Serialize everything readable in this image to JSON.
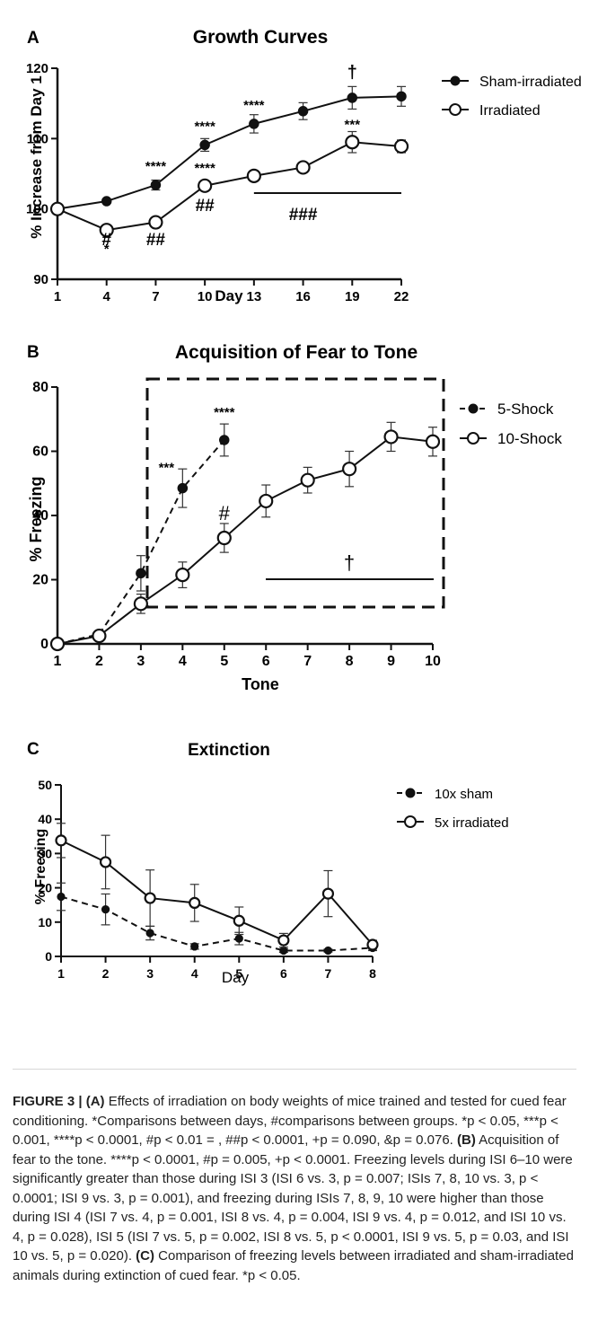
{
  "figure": {
    "panel_a": {
      "letter": "A",
      "title": "Growth  Curves",
      "ylabel": "% Increase from Day 1",
      "xlabel": "Day",
      "x_ticks": [
        "1",
        "4",
        "7",
        "10",
        "13",
        "16",
        "19",
        "22"
      ],
      "y_ticks": [
        "90",
        "100",
        "110",
        "120"
      ],
      "legend": [
        "Sham-irradiated",
        "Irradiated"
      ],
      "annotations": {
        "sham_stars": [
          {
            "x": 7,
            "y": 103.4,
            "text": "****"
          },
          {
            "x": 10,
            "y": 109.1,
            "text": "****"
          },
          {
            "x": 13,
            "y": 112.1,
            "text": "****"
          },
          {
            "x": 19,
            "y": 115.8,
            "text": "†"
          }
        ],
        "irr_stars": [
          {
            "x": 4,
            "y": 97,
            "text": "*"
          },
          {
            "x": 10,
            "y": 103.3,
            "text": "****"
          },
          {
            "x": 19,
            "y": 109.5,
            "text": "***"
          }
        ],
        "hashes": [
          {
            "x": 4,
            "text": "#"
          },
          {
            "x": 7,
            "text": "##"
          },
          {
            "x": 10,
            "text": "##"
          },
          {
            "x": 16,
            "text": "###"
          }
        ]
      }
    },
    "panel_b": {
      "letter": "B",
      "title": "Acquisition of Fear to Tone",
      "ylabel": "% Freezing",
      "xlabel": "Tone",
      "x_ticks": [
        "1",
        "2",
        "3",
        "4",
        "5",
        "6",
        "7",
        "8",
        "9",
        "10"
      ],
      "y_ticks": [
        "0",
        "20",
        "40",
        "60",
        "80"
      ],
      "legend": [
        "5-Shock",
        "10-Shock"
      ],
      "annotations": {
        "stars": [
          {
            "x": 4,
            "y": 48.5,
            "text": "***"
          },
          {
            "x": 5,
            "y": 63.5,
            "text": "****"
          }
        ],
        "hash": {
          "x": 5,
          "y": 33,
          "text": "#"
        },
        "dagger": "†"
      }
    },
    "panel_c": {
      "letter": "C",
      "title": "Extinction",
      "ylabel": "% Freezing",
      "xlabel": "Day",
      "x_ticks": [
        "1",
        "2",
        "3",
        "4",
        "5",
        "6",
        "7",
        "8"
      ],
      "y_ticks": [
        "0",
        "10",
        "20",
        "30",
        "40",
        "50"
      ],
      "legend": [
        "10x sham",
        "5x irradiated"
      ]
    }
  },
  "chart_data": [
    {
      "type": "line",
      "xlim": [
        1,
        22
      ],
      "ylim": [
        90,
        120
      ],
      "series": [
        {
          "name": "Sham-irradiated",
          "x": [
            1,
            4,
            7,
            10,
            13,
            16,
            19,
            22
          ],
          "y": [
            100,
            101.1,
            103.4,
            109.1,
            112.1,
            113.9,
            115.8,
            116
          ],
          "err": [
            0,
            0.3,
            0.7,
            0.9,
            1.3,
            1.2,
            1.6,
            1.4
          ]
        },
        {
          "name": "Irradiated",
          "x": [
            1,
            4,
            7,
            10,
            13,
            16,
            19,
            22
          ],
          "y": [
            100,
            97,
            98.1,
            103.3,
            104.7,
            105.9,
            109.5,
            108.9
          ],
          "err": [
            0,
            0.3,
            0.4,
            0.5,
            0.5,
            0.5,
            1.5,
            0.9
          ]
        }
      ]
    },
    {
      "type": "line",
      "xlim": [
        1,
        10
      ],
      "ylim": [
        0,
        80
      ],
      "series": [
        {
          "name": "5-Shock",
          "x": [
            1,
            2,
            3,
            4,
            5
          ],
          "y": [
            0,
            3,
            22,
            48.5,
            63.5
          ],
          "err": [
            0,
            1,
            5.5,
            6,
            5
          ]
        },
        {
          "name": "10-Shock",
          "x": [
            1,
            2,
            3,
            4,
            5,
            6,
            7,
            8,
            9,
            10
          ],
          "y": [
            0,
            2.5,
            12.5,
            21.5,
            33,
            44.5,
            51,
            54.5,
            64.5,
            63
          ],
          "err": [
            0,
            1,
            3,
            4,
            4.5,
            5,
            4,
            5.5,
            4.5,
            4.5
          ]
        }
      ]
    },
    {
      "type": "line",
      "xlim": [
        1,
        8
      ],
      "ylim": [
        0,
        50
      ],
      "series": [
        {
          "name": "10x sham",
          "x": [
            1,
            2,
            3,
            4,
            5,
            6,
            7,
            8
          ],
          "y": [
            17.4,
            13.7,
            6.8,
            2.9,
            5.2,
            1.7,
            1.7,
            2.5
          ],
          "err": [
            4,
            4.5,
            2,
            0.8,
            1.8,
            0.5,
            0.4,
            0.8
          ]
        },
        {
          "name": "5x irradiated",
          "x": [
            1,
            2,
            3,
            4,
            5,
            6,
            7,
            8
          ],
          "y": [
            33.8,
            27.5,
            17,
            15.6,
            10.4,
            4.7,
            18.3,
            3.4
          ],
          "err": [
            5,
            7.8,
            8.2,
            5.4,
            4,
            2,
            6.7,
            1.3
          ]
        }
      ]
    }
  ],
  "caption": {
    "label": "FIGURE 3 | (A)",
    "text_a": " Effects of irradiation on body weights of mice trained and tested for cued fear conditioning. *Comparisons between days, #comparisons between groups. *p < 0.05, ***p < 0.001, ****p < 0.0001, #p < 0.01 = , ##p < 0.0001, +p = 0.090, &p = 0.076. ",
    "label_b": "(B)",
    "text_b": " Acquisition of fear to the tone. ****p < 0.0001, #p = 0.005, +p < 0.0001. Freezing levels during ISI 6–10 were significantly greater than those during ISI 3 (ISI 6 vs. 3, p = 0.007; ISIs 7, 8, 10 vs. 3, p < 0.0001; ISI 9 vs. 3, p = 0.001), and freezing during ISIs 7, 8, 9, 10 were higher than those during ISI 4 (ISI 7 vs. 4, p = 0.001, ISI 8 vs. 4, p = 0.004, ISI 9 vs. 4, p = 0.012, and ISI 10 vs. 4, p = 0.028), ISI 5 (ISI 7 vs. 5, p = 0.002, ISI 8 vs. 5, p < 0.0001, ISI 9 vs. 5, p = 0.03, and ISI 10 vs. 5, p = 0.020). ",
    "label_c": "(C)",
    "text_c": " Comparison of freezing levels between irradiated and sham-irradiated animals during extinction of cued fear. *p < 0.05."
  }
}
